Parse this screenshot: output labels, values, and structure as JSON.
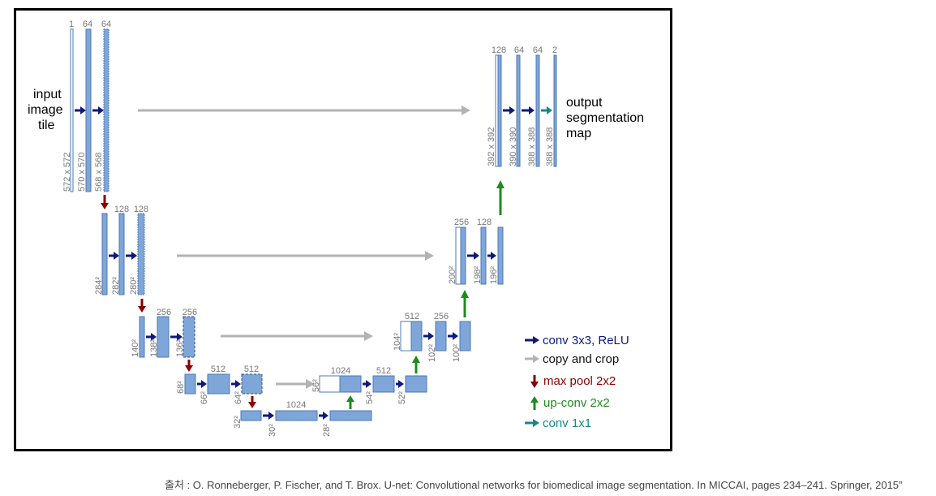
{
  "diagram": {
    "input_label": [
      "input",
      "image",
      "tile"
    ],
    "output_label": [
      "output",
      "segmentation",
      "map"
    ],
    "colors": {
      "feature_map": "#7ea6d9",
      "feature_map_border": "#4e78b4",
      "conv": "#0d1a7a",
      "copy": "#b3b3b3",
      "pool": "#8b0000",
      "upconv": "#1f8a1f",
      "conv1x1": "#138a8a",
      "dim_text": "#777777"
    },
    "channels": {
      "l1": [
        "1",
        "64",
        "64"
      ],
      "l2": [
        "128",
        "128"
      ],
      "l3": [
        "256",
        "256"
      ],
      "l4": [
        "512",
        "512"
      ],
      "l5": [
        "1024"
      ],
      "r4": [
        "1024",
        "512"
      ],
      "r3": [
        "512",
        "256"
      ],
      "r2": [
        "256",
        "128"
      ],
      "r1": [
        "128",
        "64",
        "64",
        "2"
      ]
    },
    "sizes": {
      "l1": [
        "572 x 572",
        "570 x 570",
        "568 x 568"
      ],
      "l2": [
        "284²",
        "282²",
        "280²"
      ],
      "l3": [
        "140²",
        "138²",
        "136²"
      ],
      "l4": [
        "68²",
        "66²",
        "64²"
      ],
      "l5": [
        "32²",
        "30²",
        "28²"
      ],
      "r4": [
        "56²",
        "54²",
        "52²"
      ],
      "r3": [
        "104²",
        "102²",
        "100²"
      ],
      "r2": [
        "200²",
        "198²",
        "196²"
      ],
      "r1": [
        "392 x 392",
        "390 x 390",
        "388 x 388",
        "388 x 388"
      ]
    },
    "legend": [
      {
        "label": "conv 3x3, ReLU",
        "icon": "arrow-right-icon",
        "color": "#0d1a7a"
      },
      {
        "label": "copy and crop",
        "icon": "arrow-right-icon",
        "color": "#b3b3b3"
      },
      {
        "label": "max pool 2x2",
        "icon": "arrow-down-icon",
        "color": "#8b0000"
      },
      {
        "label": "up-conv 2x2",
        "icon": "arrow-up-icon",
        "color": "#1f8a1f"
      },
      {
        "label": "conv 1x1",
        "icon": "arrow-right-icon",
        "color": "#138a8a"
      }
    ]
  },
  "caption": "출처 : O. Ronneberger, P. Fischer, and T. Brox. U-net: Convolutional networks for biomedical image segmentation. In MICCAI, pages 234–241. Springer, 2015”"
}
